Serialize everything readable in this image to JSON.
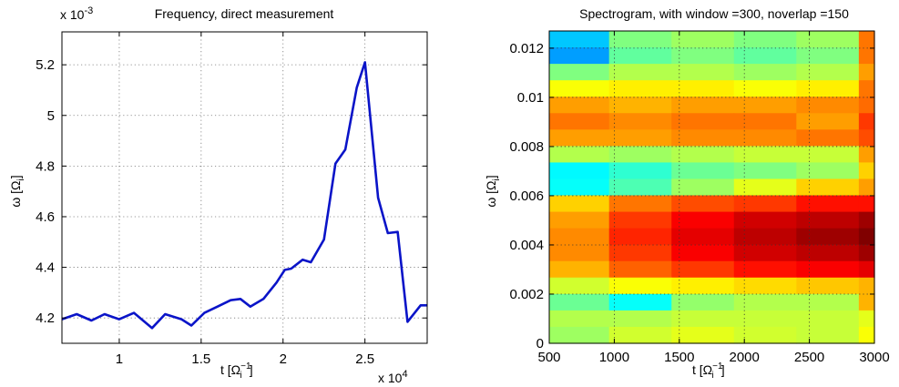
{
  "chart_data": [
    {
      "type": "line",
      "title": "Frequency, direct measurement",
      "xlabel": "t [Ω_i^-1]",
      "ylabel": "ω [Ω_i]",
      "x_multiplier_label": "x 10",
      "x_multiplier_exp": "4",
      "y_multiplier_label": "x 10",
      "y_multiplier_exp": "-3",
      "xlim": [
        0.65,
        2.88
      ],
      "ylim": [
        4.1,
        5.33
      ],
      "xticks": [
        "1",
        "1.5",
        "2",
        "2.5"
      ],
      "xtick_values": [
        1,
        1.5,
        2,
        2.5
      ],
      "yticks": [
        "4.2",
        "4.4",
        "4.6",
        "4.8",
        "5",
        "5.2"
      ],
      "ytick_values": [
        4.2,
        4.4,
        4.6,
        4.8,
        5.0,
        5.2
      ],
      "grid": true,
      "line_color": "#0a14c8",
      "series": [
        {
          "x": [
            0.65,
            0.74,
            0.83,
            0.91,
            1.0,
            1.09,
            1.2,
            1.28,
            1.38,
            1.44,
            1.52,
            1.6,
            1.68,
            1.74,
            1.8,
            1.88,
            1.96,
            2.01,
            2.05,
            2.12,
            2.17,
            2.25,
            2.32,
            2.38,
            2.45,
            2.5,
            2.58,
            2.64,
            2.7,
            2.76,
            2.84,
            2.88
          ],
          "y": [
            4.195,
            4.215,
            4.19,
            4.215,
            4.195,
            4.22,
            4.16,
            4.215,
            4.195,
            4.17,
            4.22,
            4.245,
            4.27,
            4.275,
            4.245,
            4.275,
            4.34,
            4.39,
            4.395,
            4.43,
            4.42,
            4.51,
            4.81,
            4.865,
            5.11,
            5.21,
            4.675,
            4.535,
            4.54,
            4.185,
            4.25,
            4.25
          ]
        }
      ]
    },
    {
      "type": "heatmap",
      "title": "Spectrogram, with window =300, noverlap =150",
      "xlabel": "t [Ω_i^-1]",
      "ylabel": "ω [Ω_i]",
      "xlim": [
        500,
        3000
      ],
      "ylim": [
        0,
        0.0127
      ],
      "xticks": [
        "500",
        "1000",
        "1500",
        "2000",
        "2500",
        "3000"
      ],
      "xtick_values": [
        500,
        1000,
        1500,
        2000,
        2500,
        3000
      ],
      "yticks": [
        "0",
        "0.002",
        "0.004",
        "0.006",
        "0.008",
        "0.01",
        "0.012"
      ],
      "ytick_values": [
        0,
        0.002,
        0.004,
        0.006,
        0.008,
        0.01,
        0.012
      ],
      "grid": true,
      "colormap": "jet",
      "x_edges": [
        500,
        960,
        1440,
        1920,
        2400,
        2880,
        3000
      ],
      "rows_top_to_bottom": [
        [
          0.32,
          0.5,
          0.53,
          0.5,
          0.53,
          0.76
        ],
        [
          0.28,
          0.47,
          0.5,
          0.47,
          0.5,
          0.76
        ],
        [
          0.5,
          0.55,
          0.55,
          0.53,
          0.55,
          0.72
        ],
        [
          0.62,
          0.64,
          0.64,
          0.62,
          0.64,
          0.76
        ],
        [
          0.72,
          0.7,
          0.72,
          0.72,
          0.74,
          0.77
        ],
        [
          0.76,
          0.74,
          0.76,
          0.76,
          0.72,
          0.82
        ],
        [
          0.72,
          0.72,
          0.74,
          0.74,
          0.76,
          0.8
        ],
        [
          0.55,
          0.53,
          0.55,
          0.57,
          0.57,
          0.72
        ],
        [
          0.37,
          0.42,
          0.48,
          0.5,
          0.53,
          0.67
        ],
        [
          0.38,
          0.45,
          0.53,
          0.6,
          0.67,
          0.72
        ],
        [
          0.67,
          0.76,
          0.8,
          0.82,
          0.86,
          0.86
        ],
        [
          0.72,
          0.82,
          0.88,
          0.92,
          0.94,
          0.97
        ],
        [
          0.74,
          0.84,
          0.9,
          0.94,
          0.97,
          1.0
        ],
        [
          0.74,
          0.82,
          0.88,
          0.92,
          0.94,
          0.97
        ],
        [
          0.7,
          0.78,
          0.82,
          0.86,
          0.88,
          0.9
        ],
        [
          0.58,
          0.62,
          0.64,
          0.66,
          0.68,
          0.7
        ],
        [
          0.48,
          0.38,
          0.52,
          0.55,
          0.55,
          0.7
        ],
        [
          0.55,
          0.55,
          0.57,
          0.57,
          0.57,
          0.6
        ],
        [
          0.53,
          0.58,
          0.6,
          0.58,
          0.57,
          0.62
        ]
      ]
    }
  ]
}
